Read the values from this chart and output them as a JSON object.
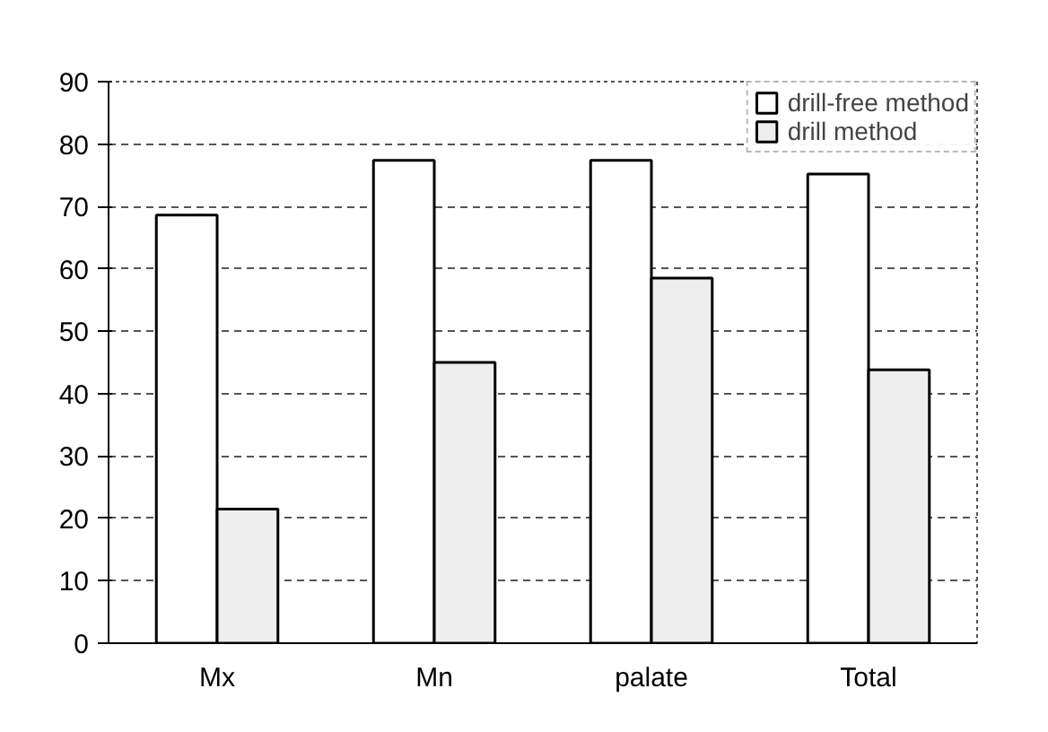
{
  "chart_data": {
    "type": "bar",
    "categories": [
      "Mx",
      "Mn",
      "palate",
      "Total"
    ],
    "series": [
      {
        "name": "drill-free method",
        "color": "#ffffff",
        "values": [
          68.6,
          77.4,
          77.4,
          75.2
        ]
      },
      {
        "name": "drill method",
        "color": "#eeeeee",
        "values": [
          21.5,
          45.0,
          58.5,
          43.8
        ]
      }
    ],
    "ylim": [
      0,
      90
    ],
    "yticks": [
      0,
      10,
      20,
      30,
      40,
      50,
      60,
      70,
      80,
      90
    ],
    "grid": "y",
    "legend": "top right"
  }
}
